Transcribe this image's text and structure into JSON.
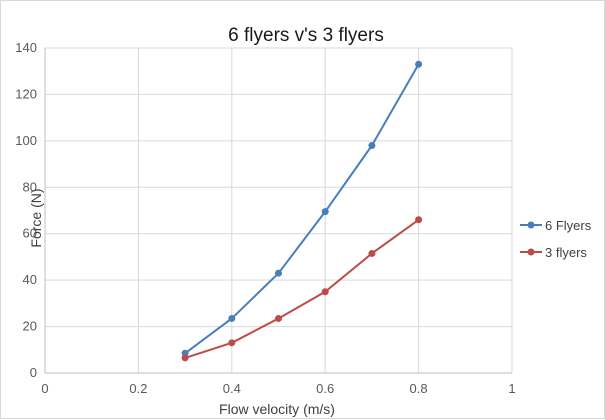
{
  "chart_data": {
    "type": "line",
    "title": "6 flyers v's 3 flyers",
    "xlabel": "Flow velocity (m/s)",
    "ylabel": "Force (N)",
    "xlim": [
      0,
      1
    ],
    "ylim": [
      0,
      140
    ],
    "x_ticks": [
      "0",
      "0.2",
      "0.4",
      "0.6",
      "0.8",
      "1"
    ],
    "y_ticks": [
      "0",
      "20",
      "40",
      "60",
      "80",
      "100",
      "120",
      "140"
    ],
    "grid": true,
    "legend_position": "right",
    "series": [
      {
        "name": "6 Flyers",
        "color": "#4a7ebb",
        "x": [
          0.3,
          0.4,
          0.5,
          0.6,
          0.7,
          0.8
        ],
        "y": [
          8.5,
          23.5,
          43,
          69.5,
          98,
          133
        ]
      },
      {
        "name": "3 flyers",
        "color": "#be4b48",
        "x": [
          0.3,
          0.4,
          0.5,
          0.6,
          0.7,
          0.8
        ],
        "y": [
          6.5,
          13,
          23.5,
          35,
          51.5,
          66
        ]
      }
    ]
  }
}
